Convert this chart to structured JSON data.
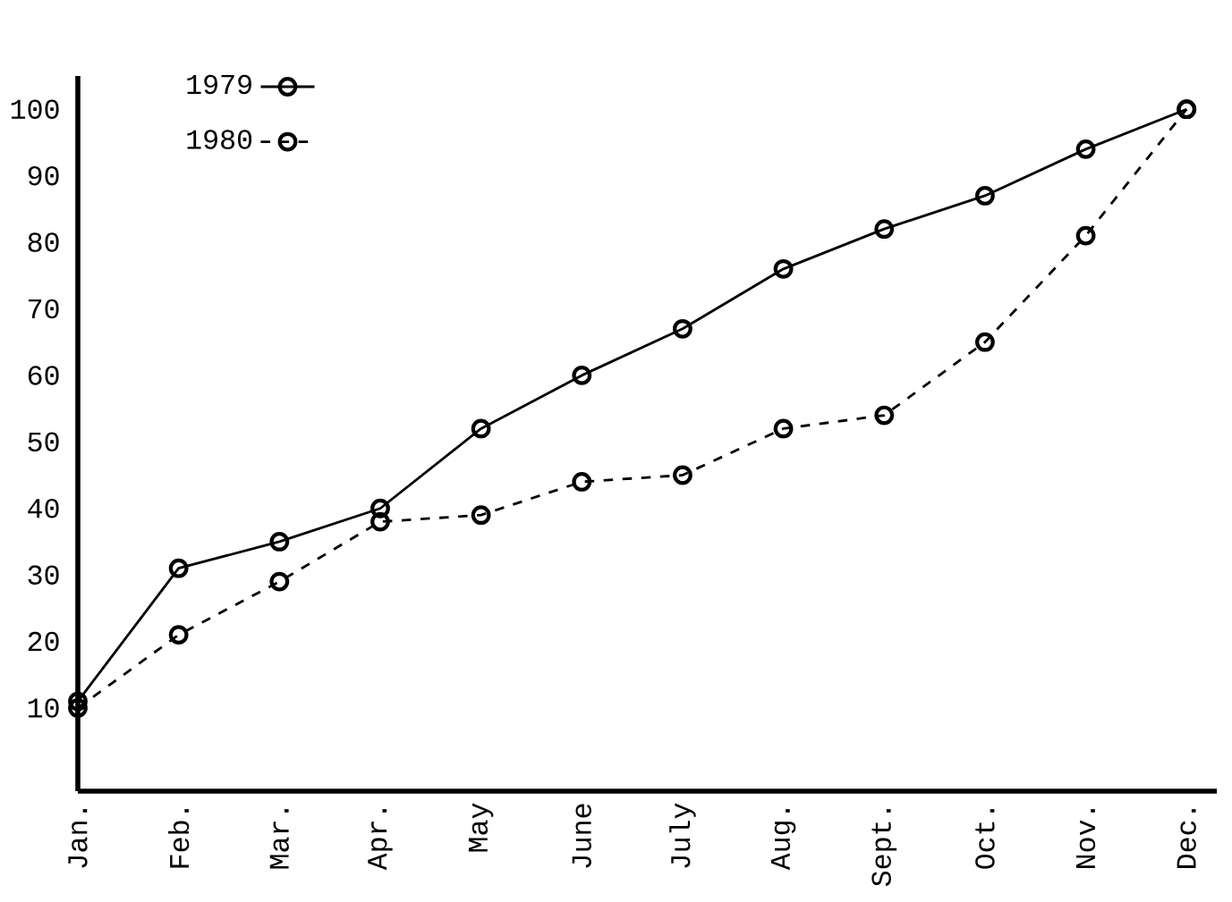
{
  "chart_data": {
    "type": "line",
    "categories": [
      "Jan.",
      "Feb.",
      "Mar.",
      "Apr.",
      "May",
      "June",
      "July",
      "Aug.",
      "Sept.",
      "Oct.",
      "Nov.",
      "Dec."
    ],
    "series": [
      {
        "name": "1979",
        "color": "#000000",
        "line_style": "solid",
        "values": [
          11,
          31,
          35,
          40,
          52,
          60,
          67,
          76,
          82,
          87,
          94,
          100
        ]
      },
      {
        "name": "1980",
        "color": "#000000",
        "line_style": "dashed",
        "values": [
          10,
          21,
          29,
          38,
          39,
          44,
          45,
          52,
          54,
          65,
          81,
          100
        ]
      }
    ],
    "ylim": [
      -2.5,
      105
    ],
    "yticks": [
      10,
      20,
      30,
      40,
      50,
      60,
      70,
      80,
      90,
      100
    ],
    "marker": "circle",
    "legend": "top left",
    "grid": false
  }
}
